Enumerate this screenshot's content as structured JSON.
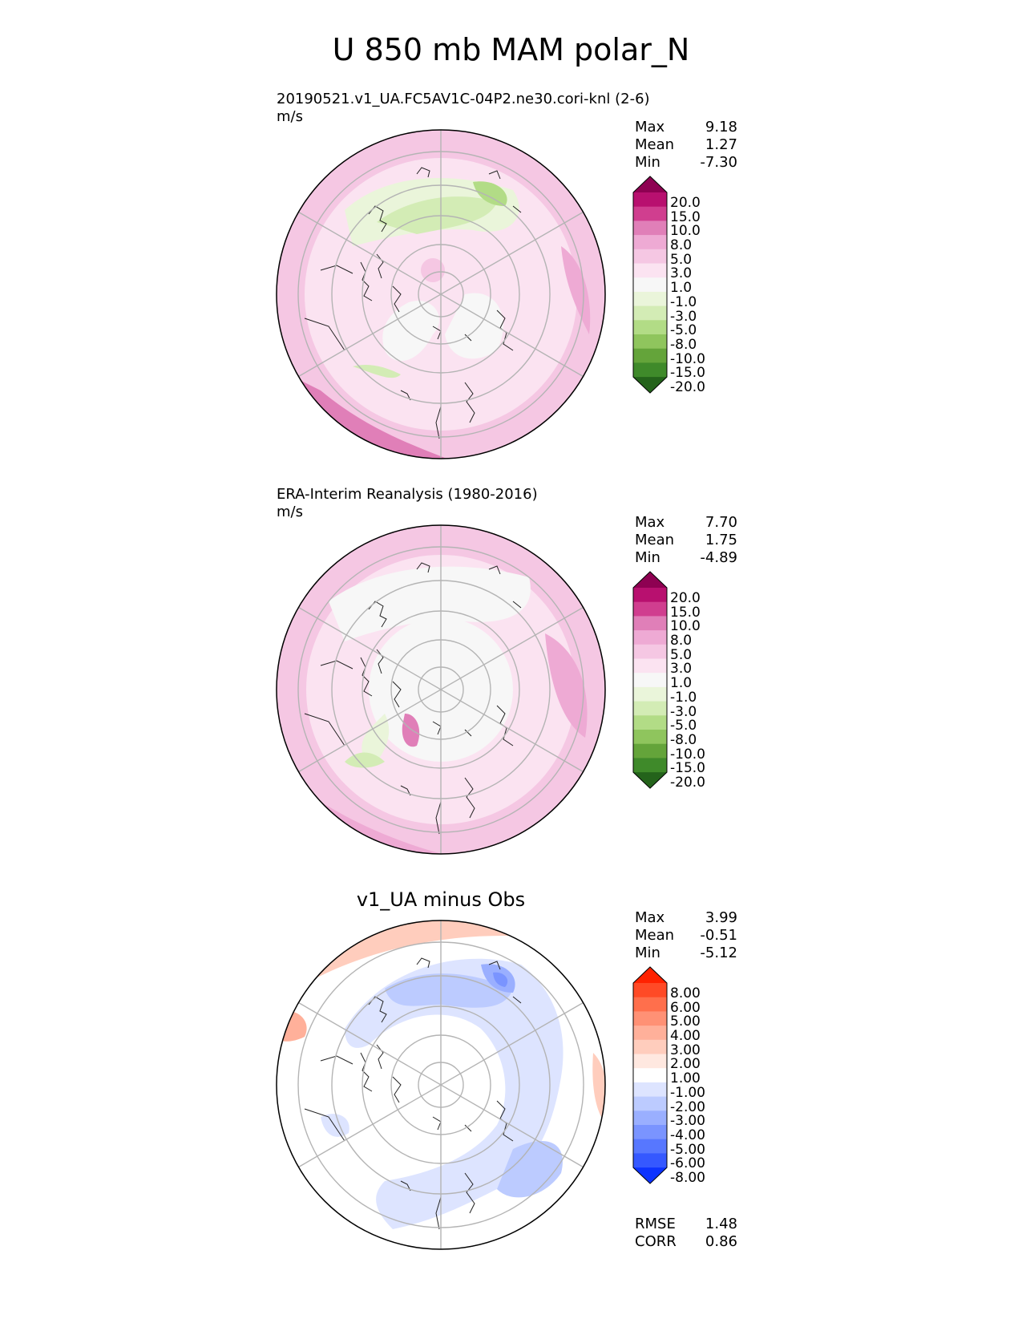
{
  "figure": {
    "title": "U 850 mb MAM polar_N"
  },
  "panels": [
    {
      "id": "test",
      "title": "20190521.v1_UA.FC5AV1C-04P2.ne30.cori-knl (2-6)",
      "units": "m/s",
      "stats": {
        "max_label": "Max",
        "max": "9.18",
        "mean_label": "Mean",
        "mean": "1.27",
        "min_label": "Min",
        "min": "-7.30"
      },
      "colorbar": {
        "labels": [
          "20.0",
          "15.0",
          "10.0",
          "8.0",
          "5.0",
          "3.0",
          "1.0",
          "-1.0",
          "-3.0",
          "-5.0",
          "-8.0",
          "-10.0",
          "-15.0",
          "-20.0"
        ],
        "colors": [
          "#8e0152",
          "#b8106f",
          "#d03e8f",
          "#e07fb8",
          "#eeaad4",
          "#f5c7e3",
          "#fbe3f1",
          "#f7f7f7",
          "#eaf5da",
          "#d3ecb5",
          "#b2dc86",
          "#8fc55d",
          "#64a43a",
          "#3f8a2a",
          "#24631b"
        ]
      }
    },
    {
      "id": "reference",
      "title": "ERA-Interim Reanalysis (1980-2016)",
      "units": "m/s",
      "stats": {
        "max_label": "Max",
        "max": "7.70",
        "mean_label": "Mean",
        "mean": "1.75",
        "min_label": "Min",
        "min": "-4.89"
      },
      "colorbar": {
        "labels": [
          "20.0",
          "15.0",
          "10.0",
          "8.0",
          "5.0",
          "3.0",
          "1.0",
          "-1.0",
          "-3.0",
          "-5.0",
          "-8.0",
          "-10.0",
          "-15.0",
          "-20.0"
        ],
        "colors": [
          "#8e0152",
          "#b8106f",
          "#d03e8f",
          "#e07fb8",
          "#eeaad4",
          "#f5c7e3",
          "#fbe3f1",
          "#f7f7f7",
          "#eaf5da",
          "#d3ecb5",
          "#b2dc86",
          "#8fc55d",
          "#64a43a",
          "#3f8a2a",
          "#24631b"
        ]
      }
    },
    {
      "id": "difference",
      "title": "v1_UA minus Obs",
      "stats": {
        "max_label": "Max",
        "max": "3.99",
        "mean_label": "Mean",
        "mean": "-0.51",
        "min_label": "Min",
        "min": "-5.12"
      },
      "colorbar": {
        "labels": [
          "8.00",
          "6.00",
          "5.00",
          "4.00",
          "3.00",
          "2.00",
          "1.00",
          "-1.00",
          "-2.00",
          "-3.00",
          "-4.00",
          "-5.00",
          "-6.00",
          "-8.00"
        ],
        "colors": [
          "#ff2200",
          "#ff4a26",
          "#ff6f4c",
          "#ff9175",
          "#ffb09a",
          "#ffcdbd",
          "#ffe8e0",
          "#ffffff",
          "#dde4ff",
          "#bccbff",
          "#9aafff",
          "#7a94ff",
          "#5777ff",
          "#3558ff",
          "#0d33ff"
        ]
      },
      "metrics": {
        "rmse_label": "RMSE",
        "rmse": "1.48",
        "corr_label": "CORR",
        "corr": "0.86"
      }
    }
  ]
}
